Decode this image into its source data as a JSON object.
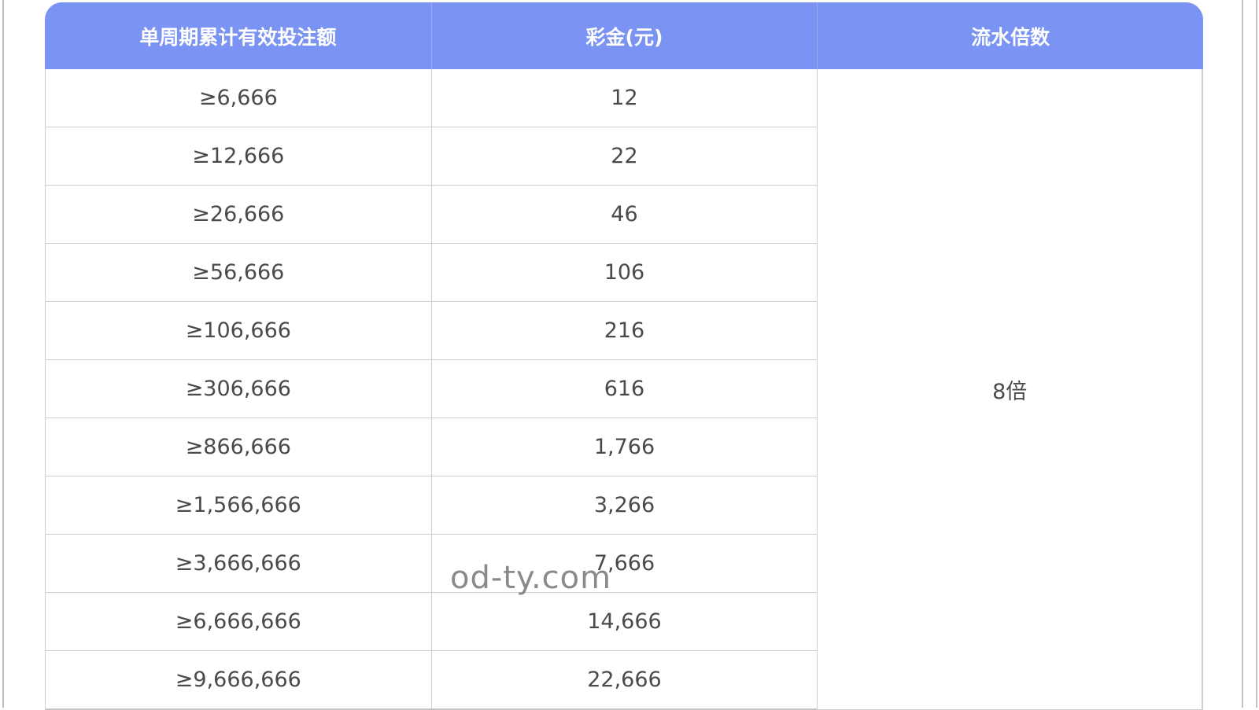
{
  "table": {
    "headers": [
      "单周期累计有效投注额",
      "彩金(元)",
      "流水倍数"
    ],
    "rows": [
      [
        "≥6,666",
        "12"
      ],
      [
        "≥12,666",
        "22"
      ],
      [
        "≥26,666",
        "46"
      ],
      [
        "≥56,666",
        "106"
      ],
      [
        "≥106,666",
        "216"
      ],
      [
        "≥306,666",
        "616"
      ],
      [
        "≥866,666",
        "1,766"
      ],
      [
        "≥1,566,666",
        "3,266"
      ],
      [
        "≥3,666,666",
        "7,666"
      ],
      [
        "≥6,666,666",
        "14,666"
      ],
      [
        "≥9,666,666",
        "22,666"
      ]
    ],
    "multiplier": "8倍",
    "header_color": "#7b93f2"
  },
  "watermark": "od-ty.com"
}
